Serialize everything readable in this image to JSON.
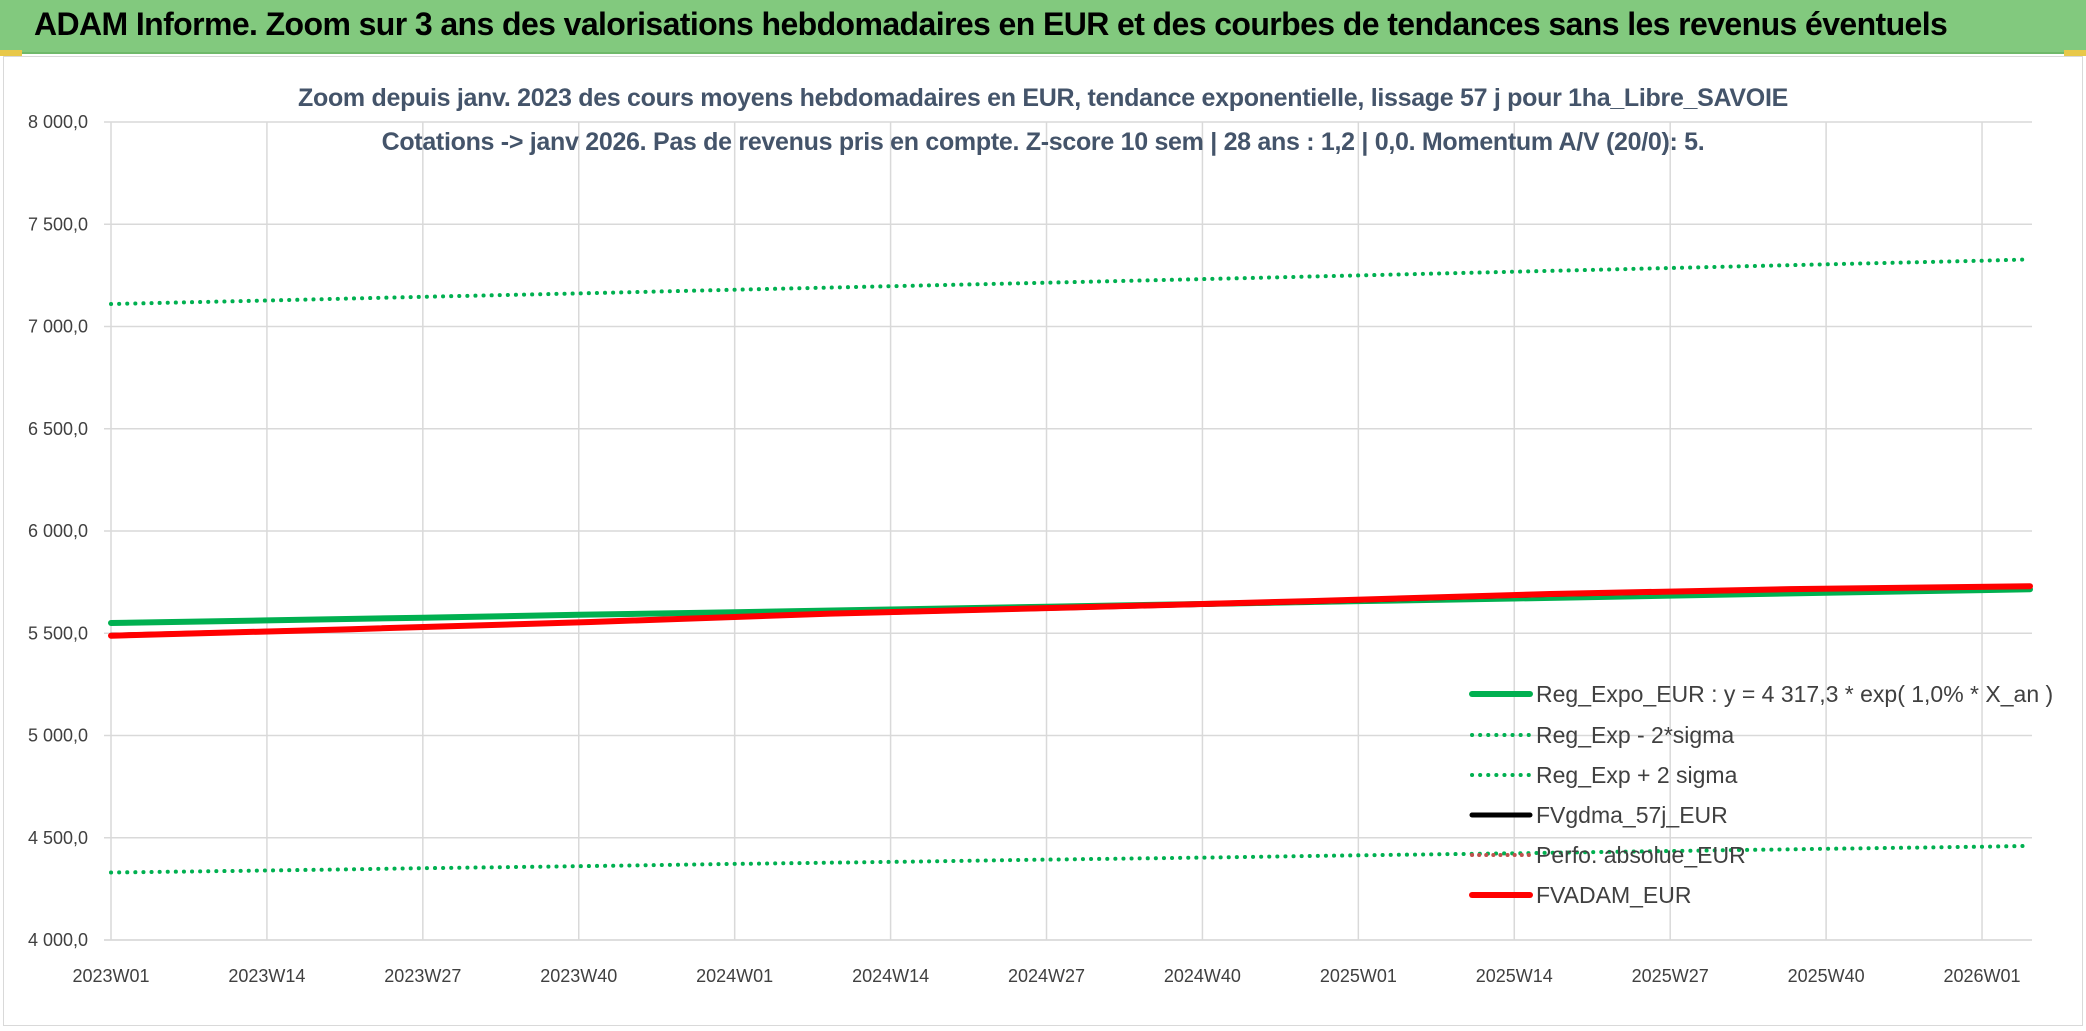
{
  "banner": {
    "title": "ADAM Informe. Zoom sur 3 ans des valorisations hebdomadaires en EUR et des courbes de tendances sans les revenus éventuels"
  },
  "chart_data": {
    "type": "line",
    "title": "Zoom depuis janv. 2023 des cours moyens hebdomadaires en EUR, tendance exponentielle, lissage 57 j pour 1ha_Libre_SAVOIE",
    "subtitle": "Cotations -> janv 2026. Pas de revenus pris en compte. Z-score 10 sem | 28 ans : 1,2 | 0,0. Momentum A/V (20/0): 5.",
    "xlabel": "",
    "ylabel": "",
    "ylim": [
      4000,
      8000
    ],
    "y_ticks": [
      "4 000,0",
      "4 500,0",
      "5 000,0",
      "5 500,0",
      "6 000,0",
      "6 500,0",
      "7 000,0",
      "7 500,0",
      "8 000,0"
    ],
    "y_tick_values": [
      4000,
      4500,
      5000,
      5500,
      6000,
      6500,
      7000,
      7500,
      8000
    ],
    "x_ticks": [
      "2023W01",
      "2023W14",
      "2023W27",
      "2023W40",
      "2024W01",
      "2024W14",
      "2024W27",
      "2024W40",
      "2025W01",
      "2025W14",
      "2025W27",
      "2025W40",
      "2026W01"
    ],
    "x_range_weeks": [
      0,
      160
    ],
    "grid": true,
    "legend_position": "bottom-right",
    "series": [
      {
        "name": "Reg_Expo_EUR : y = 4 317,3 * exp( 1,0% *  X_an )",
        "color": "#00b050",
        "style": "solid",
        "x": [
          0,
          13,
          26,
          39,
          52,
          65,
          78,
          91,
          104,
          117,
          130,
          143,
          156,
          160
        ],
        "y": [
          5550,
          5563,
          5576,
          5590,
          5603,
          5616,
          5630,
          5643,
          5657,
          5670,
          5684,
          5698,
          5711,
          5715
        ]
      },
      {
        "name": "Reg_Exp - 2*sigma",
        "color": "#00b050",
        "style": "dotted",
        "x": [
          0,
          13,
          26,
          39,
          52,
          65,
          78,
          91,
          104,
          117,
          130,
          143,
          156,
          160
        ],
        "y": [
          4330,
          4340,
          4351,
          4361,
          4372,
          4382,
          4393,
          4403,
          4414,
          4424,
          4435,
          4446,
          4456,
          4460
        ]
      },
      {
        "name": "Reg_Exp + 2 sigma",
        "color": "#00b050",
        "style": "dotted",
        "x": [
          0,
          13,
          26,
          39,
          52,
          65,
          78,
          91,
          104,
          117,
          130,
          143,
          156,
          160
        ],
        "y": [
          7110,
          7127,
          7145,
          7162,
          7180,
          7197,
          7214,
          7232,
          7250,
          7268,
          7286,
          7304,
          7322,
          7328
        ]
      },
      {
        "name": "FVgdma_57j_EUR",
        "color": "#000000",
        "style": "solid",
        "x": [
          0,
          20,
          40,
          60,
          80,
          100,
          120,
          140,
          160
        ],
        "y": [
          5490,
          5520,
          5555,
          5595,
          5625,
          5655,
          5690,
          5715,
          5730
        ]
      },
      {
        "name": "Perfo. absolue_EUR",
        "color": "#c0504d",
        "style": "dotted",
        "x": [
          0,
          20,
          40,
          60,
          80,
          100,
          120,
          140,
          160
        ],
        "y": [
          5490,
          5520,
          5555,
          5595,
          5625,
          5655,
          5690,
          5715,
          5730
        ]
      },
      {
        "name": "FVADAM_EUR",
        "color": "#ff0000",
        "style": "solid",
        "x": [
          0,
          20,
          40,
          60,
          80,
          100,
          120,
          140,
          160
        ],
        "y": [
          5488,
          5520,
          5555,
          5596,
          5626,
          5657,
          5692,
          5716,
          5730
        ]
      }
    ]
  }
}
